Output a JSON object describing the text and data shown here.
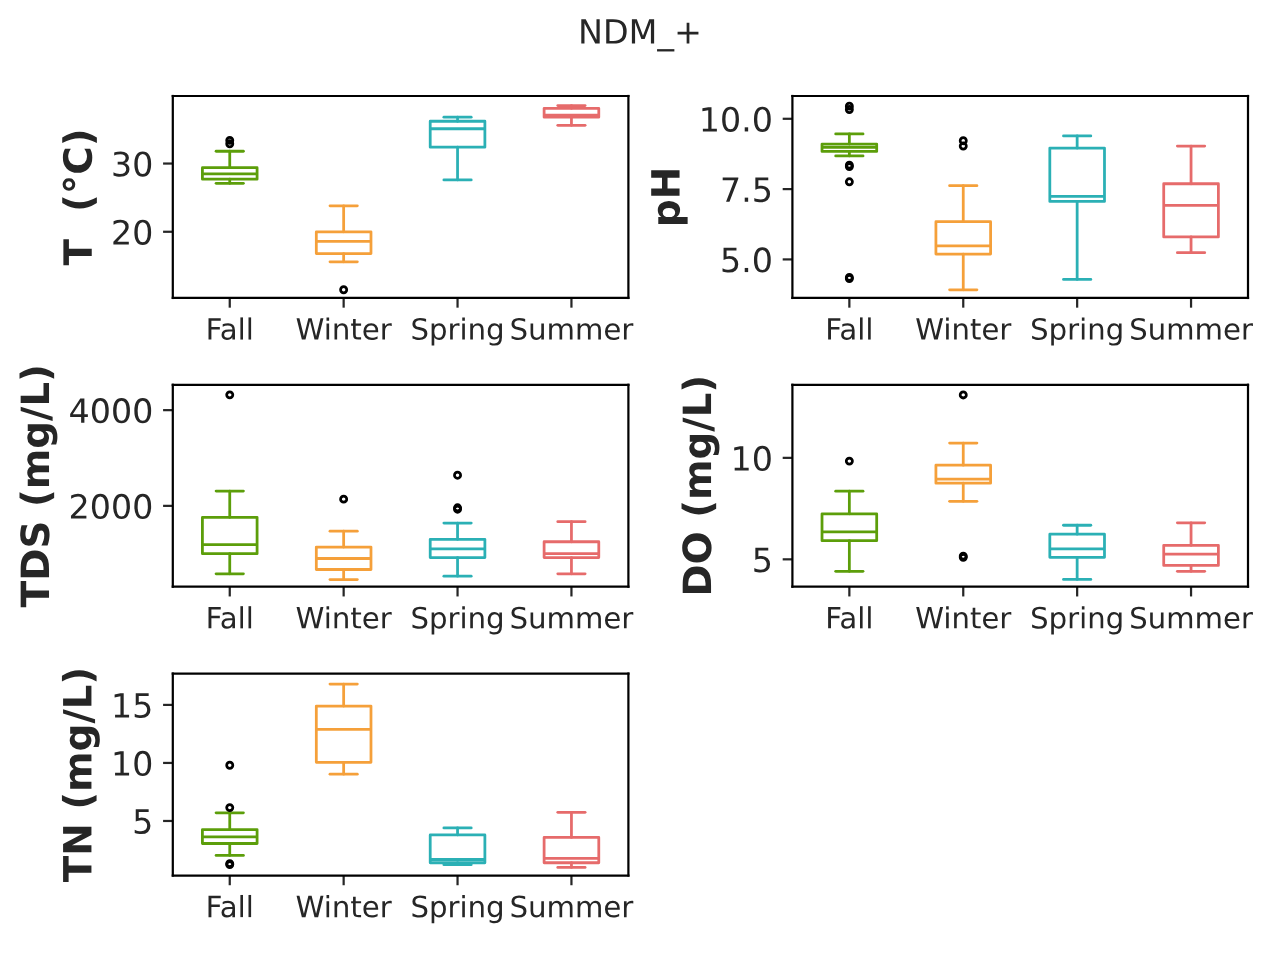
{
  "chart_data": [
    {
      "type": "box",
      "title": "NDM_+",
      "ylabel": "T  (°C)",
      "categories": [
        "Fall",
        "Winter",
        "Spring",
        "Summer"
      ],
      "colors": [
        "#5c9e0a",
        "#f5a03a",
        "#2bb0b5",
        "#e66b6b"
      ],
      "ylim": [
        10.3,
        39.9
      ],
      "yticks": [
        20,
        30
      ],
      "boxes": [
        {
          "low": 27.1,
          "q1": 27.7,
          "median": 28.5,
          "q3": 29.4,
          "high": 31.8,
          "outliers": [
            33.4,
            32.9
          ]
        },
        {
          "low": 15.6,
          "q1": 16.8,
          "median": 18.6,
          "q3": 20.0,
          "high": 23.8,
          "outliers": [
            11.5
          ]
        },
        {
          "low": 27.6,
          "q1": 32.4,
          "median": 35.1,
          "q3": 36.2,
          "high": 36.8
        },
        {
          "low": 35.6,
          "q1": 36.8,
          "median": 37.1,
          "q3": 38.1,
          "high": 38.5
        }
      ]
    },
    {
      "type": "box",
      "ylabel": "pH",
      "categories": [
        "Fall",
        "Winter",
        "Spring",
        "Summer"
      ],
      "colors": [
        "#5c9e0a",
        "#f5a03a",
        "#2bb0b5",
        "#e66b6b"
      ],
      "ylim": [
        3.63,
        10.81
      ],
      "yticks": [
        {
          "value": 5,
          "label": "5.0"
        },
        7.5,
        {
          "value": 10,
          "label": "10.0"
        }
      ],
      "boxes": [
        {
          "low": 8.68,
          "q1": 8.84,
          "median": 8.98,
          "q3": 9.1,
          "high": 9.46,
          "outliers": [
            10.45,
            10.33,
            8.35,
            8.3,
            7.76,
            4.36,
            4.32
          ]
        },
        {
          "low": 3.92,
          "q1": 5.19,
          "median": 5.48,
          "q3": 6.34,
          "high": 7.62,
          "outliers": [
            9.22,
            9.03
          ]
        },
        {
          "low": 4.29,
          "q1": 7.06,
          "median": 7.24,
          "q3": 8.96,
          "high": 9.39
        },
        {
          "low": 5.24,
          "q1": 5.8,
          "median": 6.92,
          "q3": 7.69,
          "high": 9.03
        }
      ]
    },
    {
      "type": "box",
      "ylabel": "TDS (mg/L)",
      "categories": [
        "Fall",
        "Winter",
        "Spring",
        "Summer"
      ],
      "colors": [
        "#5c9e0a",
        "#f5a03a",
        "#2bb0b5",
        "#e66b6b"
      ],
      "ylim": [
        310,
        4530
      ],
      "yticks": [
        2000,
        4000
      ],
      "boxes": [
        {
          "low": 580,
          "q1": 1000,
          "median": 1190,
          "q3": 1760,
          "high": 2310,
          "outliers": [
            4320
          ]
        },
        {
          "low": 460,
          "q1": 670,
          "median": 900,
          "q3": 1140,
          "high": 1470,
          "outliers": [
            2140
          ]
        },
        {
          "low": 530,
          "q1": 920,
          "median": 1100,
          "q3": 1300,
          "high": 1640,
          "outliers": [
            2640,
            1960,
            1930
          ]
        },
        {
          "low": 580,
          "q1": 920,
          "median": 1000,
          "q3": 1250,
          "high": 1670
        }
      ]
    },
    {
      "type": "box",
      "ylabel": "DO (mg/L)",
      "categories": [
        "Fall",
        "Winter",
        "Spring",
        "Summer"
      ],
      "colors": [
        "#5c9e0a",
        "#f5a03a",
        "#2bb0b5",
        "#e66b6b"
      ],
      "ylim": [
        3.65,
        13.6
      ],
      "yticks": [
        5,
        10
      ],
      "boxes": [
        {
          "low": 4.41,
          "q1": 5.92,
          "median": 6.35,
          "q3": 7.24,
          "high": 8.36,
          "outliers": [
            9.84
          ]
        },
        {
          "low": 7.86,
          "q1": 8.75,
          "median": 8.95,
          "q3": 9.64,
          "high": 10.73,
          "outliers": [
            13.1,
            5.16,
            5.1
          ]
        },
        {
          "low": 4.01,
          "q1": 5.1,
          "median": 5.52,
          "q3": 6.24,
          "high": 6.68
        },
        {
          "low": 4.41,
          "q1": 4.7,
          "median": 5.26,
          "q3": 5.69,
          "high": 6.8
        }
      ]
    },
    {
      "type": "box",
      "ylabel": "TN (mg/L)",
      "categories": [
        "Fall",
        "Winter",
        "Spring",
        "Summer"
      ],
      "colors": [
        "#5c9e0a",
        "#f5a03a",
        "#2bb0b5",
        "#e66b6b"
      ],
      "ylim": [
        0.3,
        17.7
      ],
      "yticks": [
        5,
        10,
        15
      ],
      "boxes": [
        {
          "low": 2.03,
          "q1": 3.06,
          "median": 3.63,
          "q3": 4.26,
          "high": 5.7,
          "outliers": [
            9.8,
            6.15,
            1.32,
            1.24
          ]
        },
        {
          "low": 9.03,
          "q1": 10.05,
          "median": 12.9,
          "q3": 14.9,
          "high": 16.8
        },
        {
          "low": 1.23,
          "q1": 1.4,
          "median": 1.68,
          "q3": 3.8,
          "high": 4.4
        },
        {
          "low": 1.0,
          "q1": 1.4,
          "median": 1.78,
          "q3": 3.58,
          "high": 5.75
        }
      ]
    }
  ]
}
